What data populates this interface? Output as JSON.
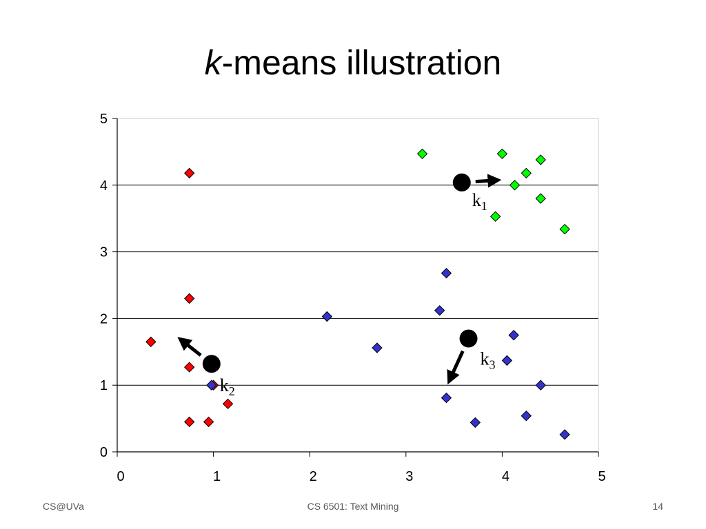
{
  "slide": {
    "title_italic": "k",
    "title_rest": "-means illustration",
    "footer_left": "CS@UVa",
    "footer_center": "CS 6501: Text Mining",
    "page_number": "14"
  },
  "chart_data": {
    "type": "scatter",
    "title": "",
    "xlabel": "",
    "ylabel": "",
    "xlim": [
      0,
      5
    ],
    "ylim": [
      0,
      5
    ],
    "xticks": [
      0,
      1,
      2,
      3,
      4,
      5
    ],
    "yticks": [
      0,
      1,
      2,
      3,
      4,
      5
    ],
    "grid": "horizontal",
    "series": [
      {
        "color": "#ff0000",
        "marker": "diamond",
        "points": [
          [
            0.35,
            1.65
          ],
          [
            0.75,
            4.18
          ],
          [
            0.75,
            2.3
          ],
          [
            0.75,
            1.27
          ],
          [
            0.75,
            0.45
          ],
          [
            0.95,
            0.45
          ],
          [
            1.0,
            1.0
          ],
          [
            1.15,
            0.72
          ]
        ]
      },
      {
        "color": "#3333cc",
        "marker": "diamond",
        "points": [
          [
            0.98,
            1.0
          ],
          [
            2.18,
            2.03
          ],
          [
            2.7,
            1.56
          ],
          [
            3.35,
            2.12
          ],
          [
            3.42,
            2.68
          ],
          [
            3.42,
            0.81
          ],
          [
            3.72,
            0.44
          ],
          [
            4.05,
            1.37
          ],
          [
            4.12,
            1.75
          ],
          [
            4.25,
            0.54
          ],
          [
            4.4,
            1.0
          ],
          [
            4.65,
            0.26
          ]
        ]
      },
      {
        "color": "#00ff00",
        "marker": "diamond",
        "points": [
          [
            3.17,
            4.47
          ],
          [
            3.93,
            3.53
          ],
          [
            4.0,
            4.47
          ],
          [
            4.13,
            4.0
          ],
          [
            4.25,
            4.18
          ],
          [
            4.4,
            4.38
          ],
          [
            4.4,
            3.8
          ],
          [
            4.65,
            3.34
          ]
        ]
      }
    ],
    "centroids": [
      {
        "label": "k",
        "sub": "1",
        "x": 3.58,
        "y": 4.04,
        "arrow": [
          4.0,
          4.08
        ]
      },
      {
        "label": "k",
        "sub": "2",
        "x": 0.98,
        "y": 1.32,
        "arrow": [
          0.62,
          1.73
        ]
      },
      {
        "label": "k",
        "sub": "3",
        "x": 3.65,
        "y": 1.7,
        "arrow": [
          3.43,
          1.0
        ]
      }
    ]
  }
}
